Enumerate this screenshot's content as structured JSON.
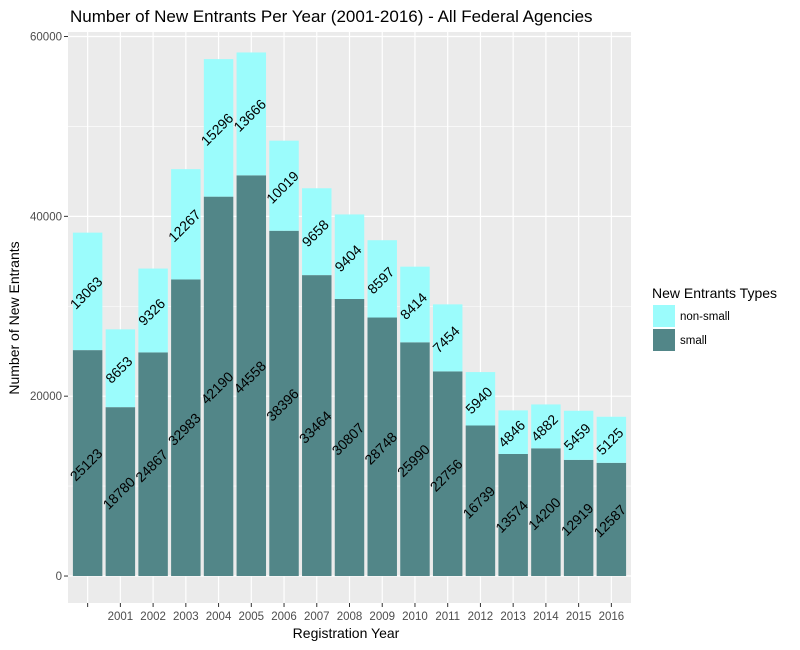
{
  "chart_data": {
    "type": "bar",
    "stacked": true,
    "title": "Number of New Entrants Per Year (2001-2016) - All Federal Agencies",
    "xlabel": "Registration Year",
    "ylabel": "Number of New Entrants",
    "ylim": [
      -3000,
      60500
    ],
    "yticks": [
      0,
      20000,
      40000,
      60000
    ],
    "categories": [
      "",
      "2001",
      "2002",
      "2003",
      "2004",
      "2005",
      "2006",
      "2007",
      "2008",
      "2009",
      "2010",
      "2011",
      "2012",
      "2013",
      "2014",
      "2015",
      "2016"
    ],
    "series": [
      {
        "name": "small",
        "color": "#528688",
        "values": [
          25123,
          18780,
          24867,
          32983,
          42190,
          44558,
          38396,
          33464,
          30807,
          28748,
          25990,
          22756,
          16739,
          13574,
          14200,
          12919,
          12587
        ]
      },
      {
        "name": "non-small",
        "color": "#9bfcfc",
        "values": [
          13063,
          8653,
          9326,
          12267,
          15296,
          13666,
          10019,
          9658,
          9404,
          8597,
          8414,
          7454,
          5940,
          4846,
          4882,
          5459,
          5125
        ]
      }
    ],
    "legend": {
      "title": "New Entrants Types",
      "position": "right",
      "entries": [
        "non-small",
        "small"
      ]
    },
    "grid": true,
    "panel_background": "#ebebeb",
    "grid_color": "#ffffff",
    "label_rotation_deg": -45
  }
}
